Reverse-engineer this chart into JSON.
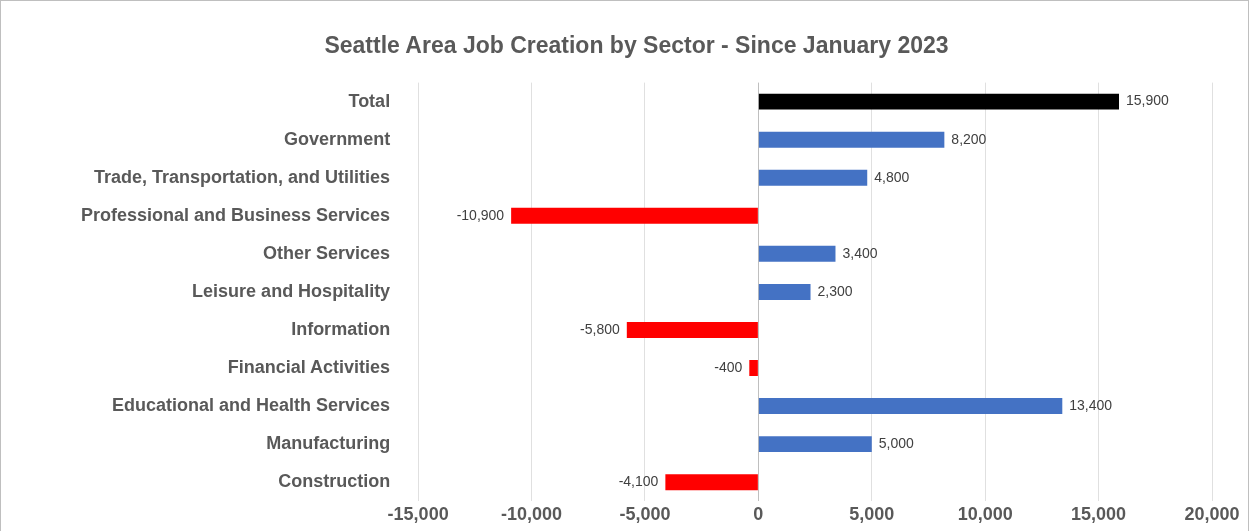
{
  "chart_data": {
    "type": "bar",
    "orientation": "horizontal",
    "title": "Seattle Area Job Creation by Sector - Since January 2023",
    "categories": [
      "Total",
      "Government",
      "Trade, Transportation, and Utilities",
      "Professional and Business Services",
      "Other Services",
      "Leisure and Hospitality",
      "Information",
      "Financial Activities",
      "Educational and Health Services",
      "Manufacturing",
      "Construction"
    ],
    "values": [
      15900,
      8200,
      4800,
      -10900,
      3400,
      2300,
      -5800,
      -400,
      13400,
      5000,
      -4100
    ],
    "colors": [
      "#000000",
      "#4472c4",
      "#4472c4",
      "#ff0000",
      "#4472c4",
      "#4472c4",
      "#ff0000",
      "#ff0000",
      "#4472c4",
      "#4472c4",
      "#ff0000"
    ],
    "value_labels": [
      "15,900",
      "8,200",
      "4,800",
      "-10,900",
      "3,400",
      "2,300",
      "-5,800",
      "-400",
      "13,400",
      "5,000",
      "-4,100"
    ],
    "xlim": [
      -15000,
      20000
    ],
    "xticks": [
      {
        "value": -15000,
        "label": "-15,000"
      },
      {
        "value": -10000,
        "label": "-10,000"
      },
      {
        "value": -5000,
        "label": "-5,000"
      },
      0,
      {
        "value": 5000,
        "label": "5,000"
      },
      {
        "value": 10000,
        "label": "10,000"
      },
      {
        "value": 15000,
        "label": "15,000"
      },
      {
        "value": 20000,
        "label": "20,000"
      }
    ],
    "grid": "x",
    "legend": false
  }
}
